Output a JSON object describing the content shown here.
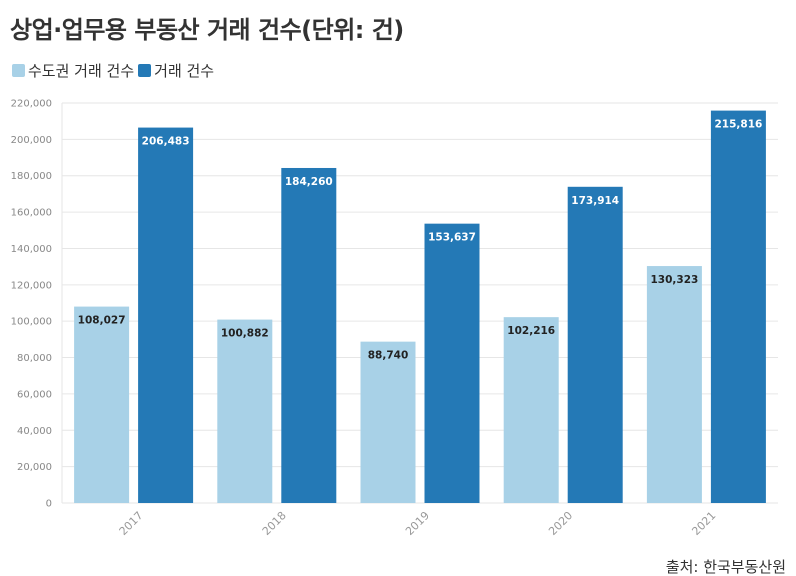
{
  "header": {
    "title": "상업·업무용 부동산 거래 건수(단위: 건)"
  },
  "legend": {
    "items": [
      {
        "label": "수도권 거래 건수",
        "color": "#a8d1e7"
      },
      {
        "label": "거래 건수",
        "color": "#2479b6"
      }
    ]
  },
  "footer": {
    "source": "출처: 한국부동산원"
  },
  "chart_data": {
    "type": "bar",
    "categories": [
      "2017",
      "2018",
      "2019",
      "2020",
      "2021"
    ],
    "series": [
      {
        "name": "수도권 거래 건수",
        "values": [
          108027,
          100882,
          88740,
          102216,
          130323
        ],
        "color": "#a8d1e7",
        "label_color": "#222222"
      },
      {
        "name": "거래 건수",
        "values": [
          206483,
          184260,
          153637,
          173914,
          215816
        ],
        "color": "#2479b6",
        "label_color": "#ffffff"
      }
    ],
    "value_labels": [
      [
        "108,027",
        "100,882",
        "88,740",
        "102,216",
        "130,323"
      ],
      [
        "206,483",
        "184,260",
        "153,637",
        "173,914",
        "215,816"
      ]
    ],
    "y_ticks": [
      0,
      20000,
      40000,
      60000,
      80000,
      100000,
      120000,
      140000,
      160000,
      180000,
      200000,
      220000
    ],
    "y_tick_labels": [
      "0",
      "20,000",
      "40,000",
      "60,000",
      "80,000",
      "100,000",
      "120,000",
      "140,000",
      "160,000",
      "180,000",
      "200,000",
      "220,000"
    ],
    "ylim": [
      0,
      220000
    ],
    "grid": true,
    "legend_position": "top-left",
    "title": "상업·업무용 부동산 거래 건수(단위: 건)"
  }
}
